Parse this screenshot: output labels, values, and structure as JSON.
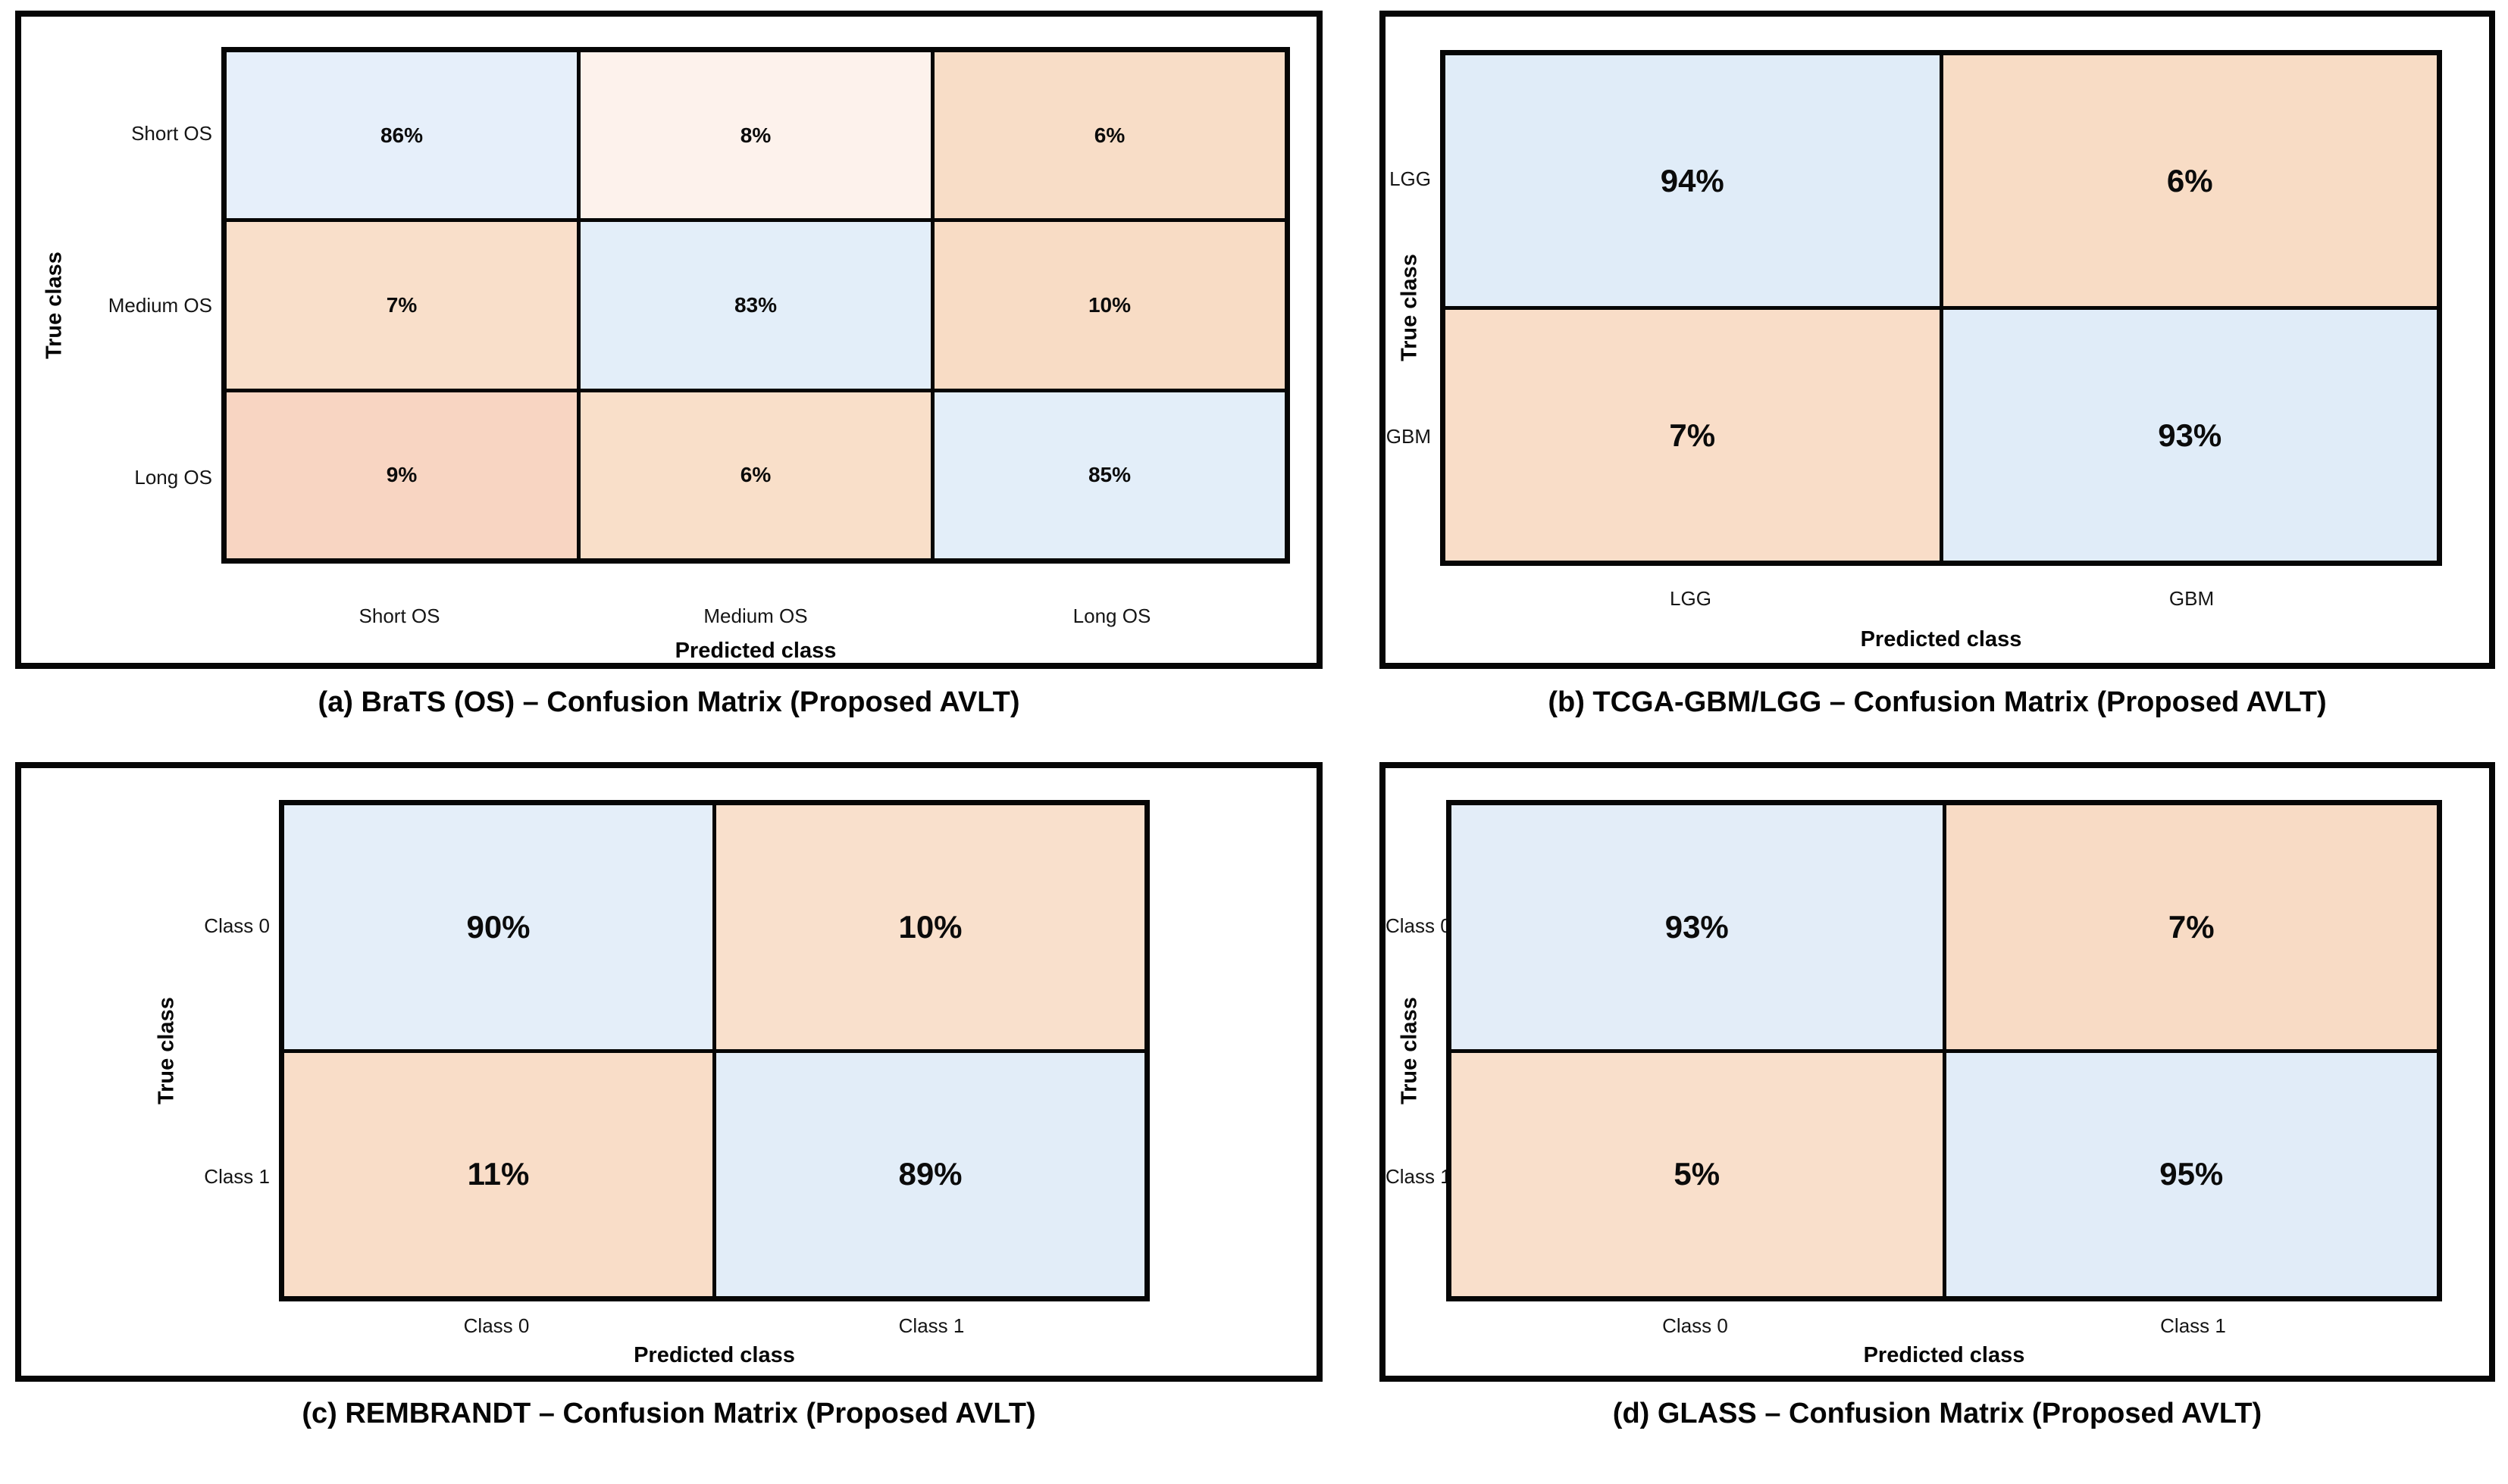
{
  "figure": {
    "background": "#ffffff",
    "panel_border_color": "#060606",
    "diagonal_cell_color": "#e2edf8",
    "offdiagonal_cell_color": "#f8dcc6"
  },
  "chart_data": [
    {
      "type": "heatmap",
      "caption": "(a) BraTS (OS) – Confusion Matrix (Proposed AVLT)",
      "xlabel": "Predicted class",
      "ylabel": "True class",
      "col_labels": [
        "Short OS",
        "Medium OS",
        "Long OS"
      ],
      "row_labels": [
        "Short OS",
        "Medium OS",
        "Long OS"
      ],
      "values_percent": [
        [
          86,
          8,
          6
        ],
        [
          7,
          83,
          10
        ],
        [
          9,
          6,
          85
        ]
      ],
      "cells": [
        [
          {
            "label": "86%",
            "color": "#e6effa"
          },
          {
            "label": "8%",
            "color": "#fdf2ec"
          },
          {
            "label": "6%",
            "color": "#f8ddc7"
          }
        ],
        [
          {
            "label": "7%",
            "color": "#f9dfca"
          },
          {
            "label": "83%",
            "color": "#e3eef9"
          },
          {
            "label": "10%",
            "color": "#f8dcc5"
          }
        ],
        [
          {
            "label": "9%",
            "color": "#f8d5c2"
          },
          {
            "label": "6%",
            "color": "#f9dfc9"
          },
          {
            "label": "85%",
            "color": "#e3eef9"
          }
        ]
      ]
    },
    {
      "type": "heatmap",
      "caption": "(b) TCGA-GBM/LGG – Confusion Matrix (Proposed AVLT)",
      "xlabel": "Predicted class",
      "ylabel": "True class",
      "col_labels": [
        "LGG",
        "GBM"
      ],
      "row_labels": [
        "LGG",
        "GBM"
      ],
      "values_percent": [
        [
          94,
          6
        ],
        [
          7,
          93
        ]
      ],
      "cells": [
        [
          {
            "label": "94%",
            "color": "#e0ecf8"
          },
          {
            "label": "6%",
            "color": "#f8dcc5"
          }
        ],
        [
          {
            "label": "7%",
            "color": "#f9ddc8"
          },
          {
            "label": "93%",
            "color": "#e0ecf8"
          }
        ]
      ]
    },
    {
      "type": "heatmap",
      "caption": "(c) REMBRANDT – Confusion Matrix (Proposed AVLT)",
      "xlabel": "Predicted class",
      "ylabel": "True class",
      "col_labels": [
        "Class 0",
        "Class 1"
      ],
      "row_labels": [
        "Class 0",
        "Class 1"
      ],
      "values_percent": [
        [
          90,
          10
        ],
        [
          11,
          89
        ]
      ],
      "cells": [
        [
          {
            "label": "90%",
            "color": "#e4eef9"
          },
          {
            "label": "10%",
            "color": "#f9e0cc"
          }
        ],
        [
          {
            "label": "11%",
            "color": "#f9ddc8"
          },
          {
            "label": "89%",
            "color": "#e2edf8"
          }
        ]
      ]
    },
    {
      "type": "heatmap",
      "caption": "(d) GLASS – Confusion Matrix (Proposed AVLT)",
      "xlabel": "Predicted class",
      "ylabel": "True class",
      "col_labels": [
        "Class 0",
        "Class 1"
      ],
      "row_labels": [
        "Class 0",
        "Class 1"
      ],
      "values_percent": [
        [
          93,
          7
        ],
        [
          5,
          95
        ]
      ],
      "cells": [
        [
          {
            "label": "93%",
            "color": "#e3edf8"
          },
          {
            "label": "7%",
            "color": "#f8dbc5"
          }
        ],
        [
          {
            "label": "5%",
            "color": "#f9dfcb"
          },
          {
            "label": "95%",
            "color": "#e1ecf8"
          }
        ]
      ]
    }
  ]
}
